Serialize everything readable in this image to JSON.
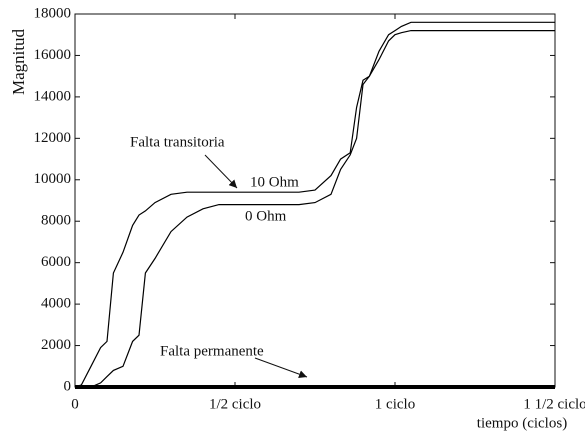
{
  "chart_data": {
    "type": "line",
    "ylabel": "Magnitud",
    "xlabel": "tiempo (ciclos)",
    "annotations": [
      "Falta transitoria"
    ],
    "x": [
      0,
      0.02,
      0.05,
      0.08,
      0.1,
      0.12,
      0.15,
      0.18,
      0.2,
      0.22,
      0.25,
      0.3,
      0.35,
      0.4,
      0.45,
      0.5,
      0.55,
      0.6,
      0.7,
      0.75,
      0.8,
      0.83,
      0.86,
      0.88,
      0.9,
      0.92,
      0.95,
      0.98,
      1.0,
      1.02,
      1.05,
      1.1,
      1.2,
      1.3,
      1.4,
      1.5
    ],
    "series": [
      {
        "name": "10 Ohm",
        "color": "#000000",
        "values": [
          0,
          100,
          1000,
          1900,
          2200,
          5500,
          6500,
          7800,
          8300,
          8500,
          8900,
          9300,
          9400,
          9400,
          9400,
          9400,
          9400,
          9400,
          9400,
          9500,
          10200,
          11000,
          11300,
          13500,
          14800,
          15000,
          16200,
          17000,
          17200,
          17400,
          17600,
          17600,
          17600,
          17600,
          17600,
          17600
        ]
      },
      {
        "name": "0 Ohm",
        "color": "#000000",
        "values": [
          0,
          0,
          0,
          200,
          500,
          800,
          1000,
          2200,
          2500,
          5500,
          6200,
          7500,
          8200,
          8600,
          8800,
          8800,
          8800,
          8800,
          8800,
          8900,
          9300,
          10500,
          11200,
          12000,
          14600,
          15000,
          15800,
          16700,
          17000,
          17100,
          17200,
          17200,
          17200,
          17200,
          17200,
          17200
        ]
      },
      {
        "name": "Falta permanente",
        "color": "#000000",
        "values": [
          0,
          0,
          0,
          0,
          0,
          0,
          0,
          0,
          0,
          0,
          0,
          0,
          0,
          0,
          0,
          0,
          0,
          0,
          0,
          0,
          0,
          0,
          0,
          0,
          0,
          0,
          0,
          0,
          0,
          0,
          0,
          0,
          0,
          0,
          0,
          0
        ]
      }
    ],
    "xlim": [
      0,
      1.5
    ],
    "xticks": [
      0,
      {
        "value": 0.5,
        "label": "1/2 ciclo"
      },
      {
        "value": 1,
        "label": "1 ciclo"
      },
      {
        "value": 1.5,
        "label": "1 1/2 ciclo"
      }
    ],
    "ylim": [
      0,
      18000
    ],
    "yticks": [
      0,
      2000,
      4000,
      6000,
      8000,
      10000,
      12000,
      14000,
      16000,
      18000
    ],
    "grid": false
  }
}
